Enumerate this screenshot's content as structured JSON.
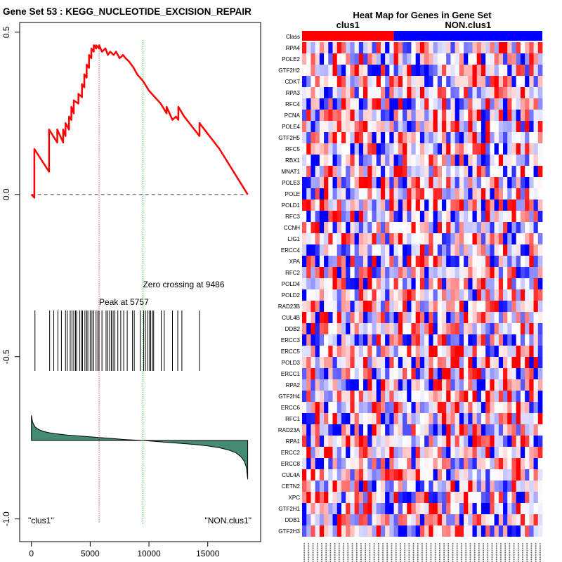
{
  "chart_data": [
    {
      "type": "line",
      "title": "Gene Set  53 : KEGG_NUCLEOTIDE_EXCISION_REPAIR",
      "xlabel": "",
      "ylabel": "",
      "xlim": [
        -1000,
        19500
      ],
      "ylim": [
        -1.07,
        0.53
      ],
      "x_ticks": [
        0,
        5000,
        10000,
        15000
      ],
      "x_tick_labels": [
        "0",
        "5000",
        "10000",
        "15000"
      ],
      "y_ticks": [
        0.5,
        0.0,
        -0.5,
        -1.0
      ],
      "y_tick_labels": [
        "0.5",
        "0.0",
        "-0.5",
        "-1.0"
      ],
      "running_enrichment_score": {
        "x": [
          0,
          250,
          250,
          1500,
          1500,
          2200,
          2200,
          2700,
          2700,
          2900,
          2900,
          3200,
          3200,
          3400,
          3400,
          3600,
          3600,
          4000,
          4000,
          4300,
          4300,
          4500,
          4500,
          4700,
          4700,
          4900,
          4900,
          5100,
          5100,
          5300,
          5300,
          5500,
          5500,
          5757,
          5757,
          6000,
          6300,
          6500,
          6700,
          7000,
          7200,
          7500,
          7800,
          8000,
          8300,
          8700,
          9000,
          9486,
          10000,
          10500,
          11000,
          11500,
          11500,
          12000,
          12300,
          12500,
          12500,
          13000,
          14300,
          14300,
          16000,
          18400
        ],
        "y": [
          0,
          -0.01,
          0.14,
          0.07,
          0.2,
          0.16,
          0.2,
          0.16,
          0.2,
          0.18,
          0.22,
          0.2,
          0.24,
          0.23,
          0.27,
          0.25,
          0.29,
          0.28,
          0.31,
          0.3,
          0.34,
          0.33,
          0.37,
          0.36,
          0.4,
          0.39,
          0.43,
          0.42,
          0.45,
          0.44,
          0.46,
          0.45,
          0.46,
          0.45,
          0.46,
          0.44,
          0.45,
          0.43,
          0.44,
          0.43,
          0.44,
          0.42,
          0.43,
          0.42,
          0.41,
          0.39,
          0.37,
          0.35,
          0.32,
          0.3,
          0.28,
          0.25,
          0.27,
          0.23,
          0.24,
          0.23,
          0.27,
          0.24,
          0.18,
          0.22,
          0.14,
          0.0
        ],
        "color": "#ff0000"
      },
      "baseline_y": 0.0,
      "peak": {
        "x": 5757,
        "label": "Peak at 5757",
        "color": "#cc0000"
      },
      "zero_crossing": {
        "x": 9486,
        "label": "Zero crossing at 9486",
        "color": "#00cc00"
      },
      "hit_positions": [
        300,
        1550,
        1900,
        2250,
        2550,
        2900,
        3050,
        3300,
        3450,
        3600,
        3750,
        3850,
        4100,
        4250,
        4350,
        4550,
        4700,
        4800,
        5000,
        5150,
        5300,
        5500,
        5650,
        5757,
        6000,
        6350,
        6500,
        6650,
        6800,
        6950,
        7100,
        7350,
        7600,
        7850,
        8150,
        8600,
        8750,
        9250,
        9550,
        9700,
        9900,
        10050,
        10150,
        10300,
        10400,
        11050,
        11300,
        12000,
        12450,
        12800,
        14300
      ],
      "ranked_metric": {
        "x": [
          0,
          100,
          300,
          600,
          1000,
          1500,
          2000,
          3000,
          4000,
          5000,
          6000,
          7000,
          8000,
          9000,
          9486,
          10000,
          11000,
          12000,
          13000,
          14000,
          15000,
          16000,
          16800,
          17400,
          17800,
          18100,
          18300,
          18400
        ],
        "y": [
          0.55,
          0.4,
          0.3,
          0.24,
          0.2,
          0.17,
          0.15,
          0.12,
          0.1,
          0.08,
          0.06,
          0.04,
          0.02,
          0.005,
          0.0,
          -0.01,
          -0.03,
          -0.05,
          -0.07,
          -0.09,
          -0.12,
          -0.16,
          -0.21,
          -0.27,
          -0.35,
          -0.45,
          -0.6,
          -0.85
        ],
        "fill_color": "#458b74"
      },
      "labels": {
        "left": "\"clus1\"",
        "right": "\"NON.clus1\""
      }
    },
    {
      "type": "heatmap",
      "title": "Heat Map for Genes in Gene Set",
      "class_label": "Class",
      "groups": [
        {
          "name": "clus1",
          "color": "#ff0000",
          "n_samples": 21
        },
        {
          "name": "NON.clus1",
          "color": "#0000ff",
          "n_samples": 34
        }
      ],
      "genes": [
        "RPA4",
        "POLE2",
        "GTF2H2",
        "CDK7",
        "RPA3",
        "RFC4",
        "PCNA",
        "POLE4",
        "GTF2H5",
        "RFC5",
        "RBX1",
        "MNAT1",
        "POLE3",
        "POLE",
        "POLD1",
        "RFC3",
        "CCNH",
        "LIG1",
        "ERCC4",
        "XPA",
        "RFC2",
        "POLD4",
        "POLD2",
        "RAD23B",
        "CUL4B",
        "DDB2",
        "ERCC3",
        "ERCC5",
        "POLD3",
        "ERCC1",
        "RPA2",
        "GTF2H4",
        "ERCC6",
        "RFC1",
        "RAD23A",
        "RPA1",
        "ERCC2",
        "ERCC8",
        "CUL4A",
        "CETN2",
        "XPC",
        "GTF2H1",
        "DDB1",
        "GTF2H3"
      ],
      "color_low": "#0000ff",
      "color_mid": "#ffffff",
      "color_high": "#ff0000"
    }
  ]
}
